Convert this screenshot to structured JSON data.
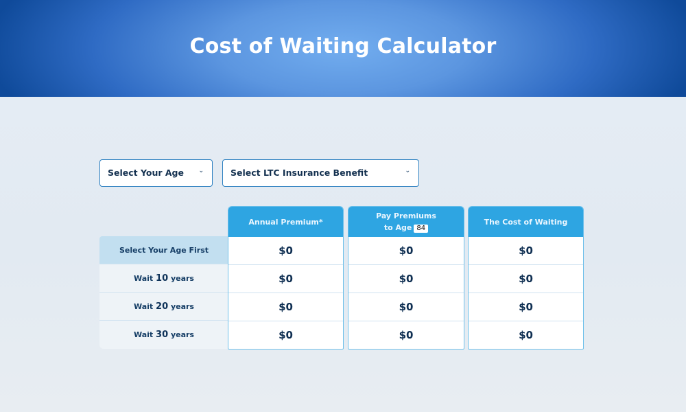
{
  "header": {
    "title": "Cost of Waiting Calculator"
  },
  "controls": {
    "age_select": "Select Your Age",
    "benefit_select": "Select LTC Insurance Benefit",
    "chevron": "chevron-down-icon"
  },
  "table": {
    "columns": [
      {
        "label": "Annual Premium*"
      },
      {
        "label_line1": "Pay Premiums",
        "label_line2": "to Age",
        "age_value": "84"
      },
      {
        "label": "The Cost of Waiting"
      }
    ],
    "rows": [
      {
        "label": "Select Your Age First",
        "values": [
          "$0",
          "$0",
          "$0"
        ]
      },
      {
        "pre": "Wait ",
        "num": "10",
        "post": " years",
        "values": [
          "$0",
          "$0",
          "$0"
        ]
      },
      {
        "pre": "Wait ",
        "num": "20",
        "post": " years",
        "values": [
          "$0",
          "$0",
          "$0"
        ]
      },
      {
        "pre": "Wait ",
        "num": "30",
        "post": " years",
        "values": [
          "$0",
          "$0",
          "$0"
        ]
      }
    ]
  },
  "colors": {
    "header_accent": "#2ea5e2",
    "banner": "#0f4a9a"
  }
}
